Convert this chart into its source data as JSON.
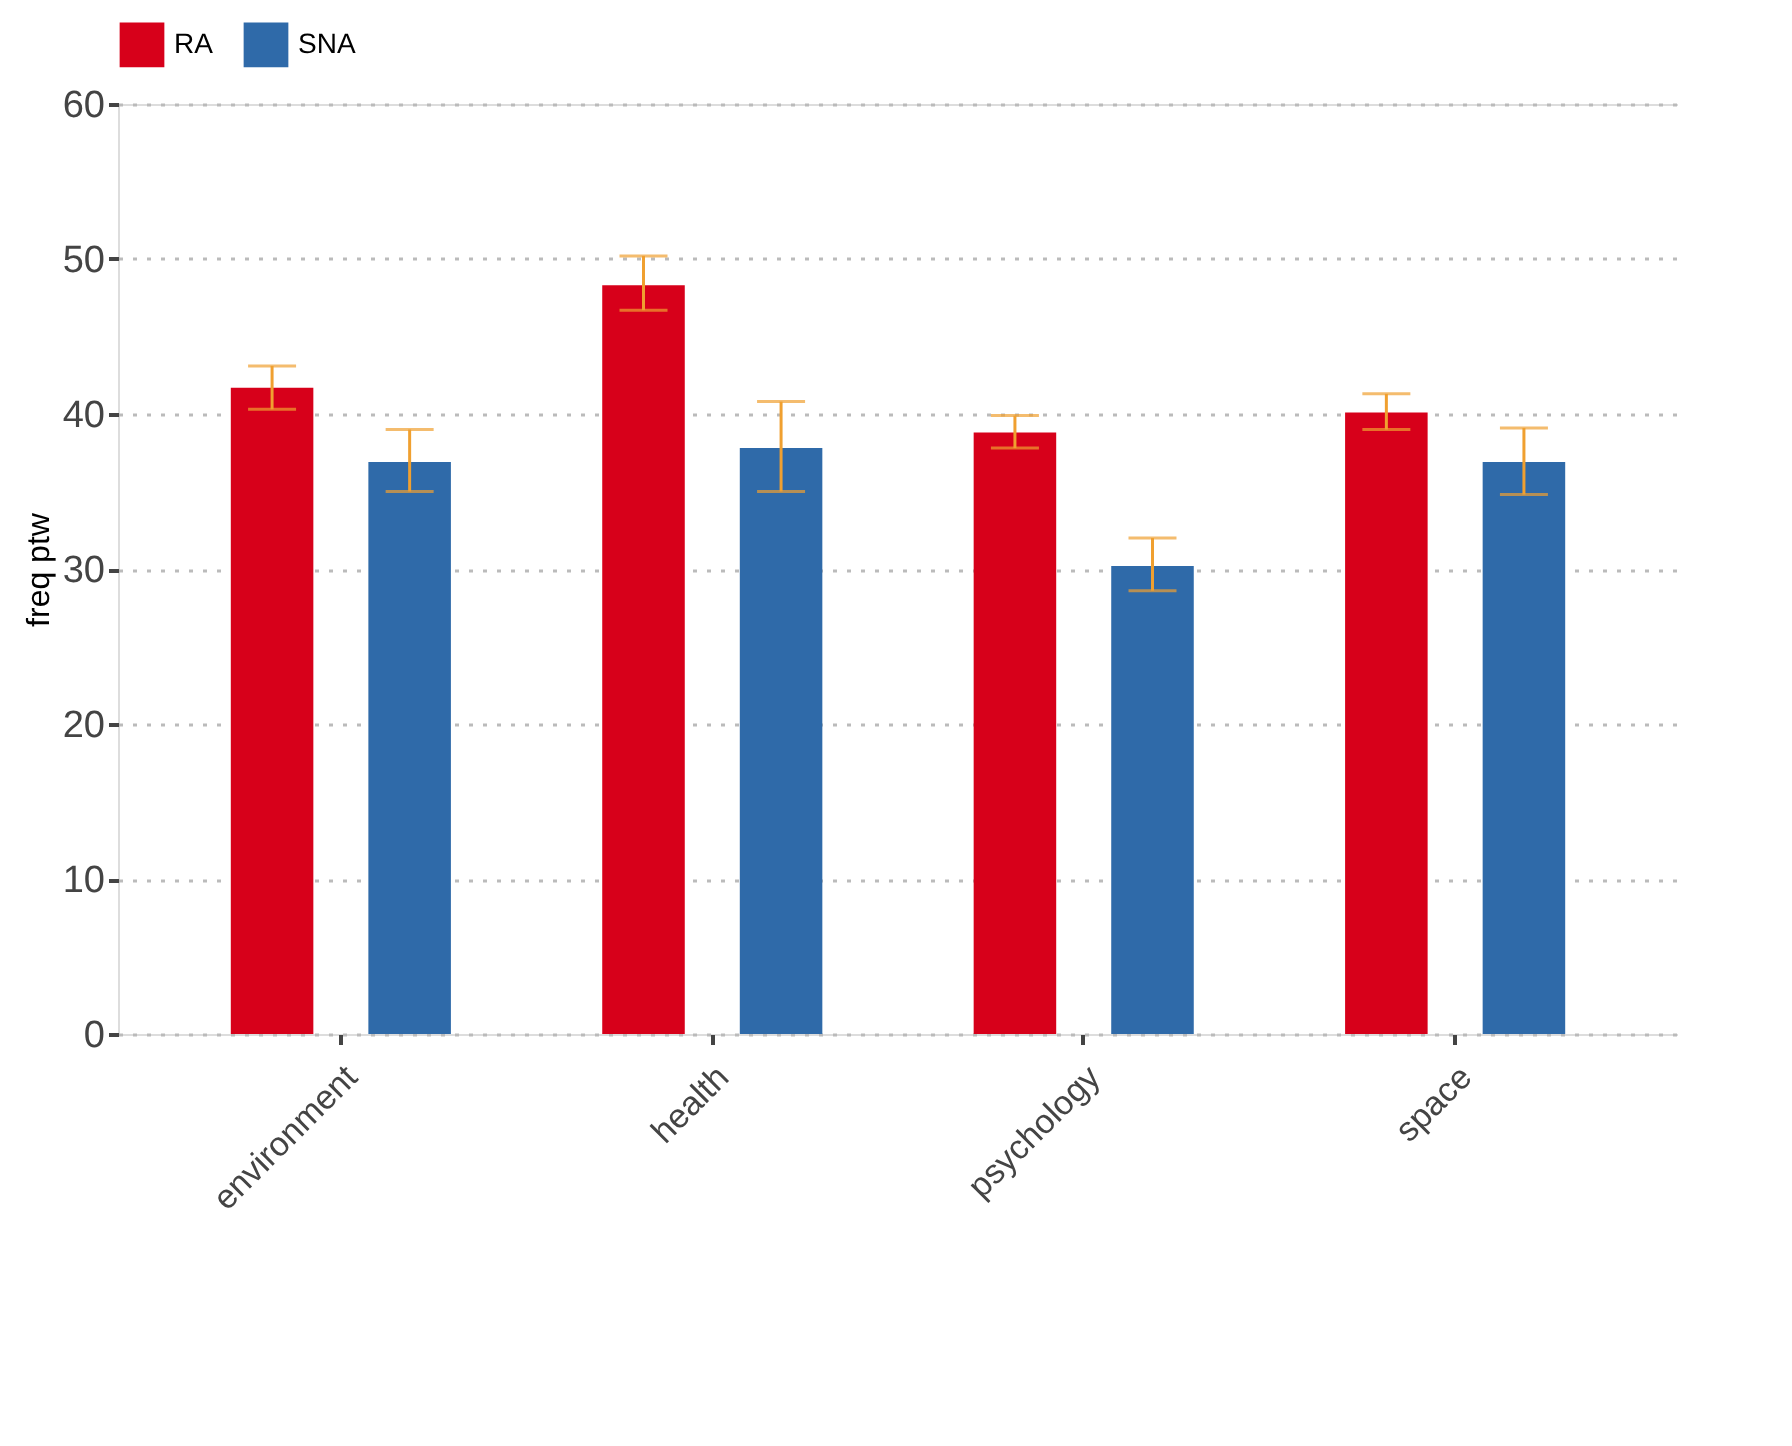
{
  "chart_data": {
    "type": "bar",
    "ylabel": "freq ptw",
    "categories": [
      "environment",
      "health",
      "psychology",
      "space"
    ],
    "series": [
      {
        "name": "RA",
        "color": "#d7001a",
        "values": [
          41.7,
          48.3,
          38.8,
          40.1
        ],
        "errors": [
          [
            40.3,
            43.1
          ],
          [
            46.7,
            50.2
          ],
          [
            37.8,
            39.9
          ],
          [
            39.0,
            41.3
          ]
        ]
      },
      {
        "name": "SNA",
        "color": "#2f6aa9",
        "values": [
          36.9,
          37.8,
          30.2,
          36.9
        ],
        "errors": [
          [
            35.0,
            39.0
          ],
          [
            35.0,
            40.8
          ],
          [
            28.6,
            32.0
          ],
          [
            34.8,
            39.1
          ]
        ]
      }
    ],
    "ylim": [
      0,
      60
    ],
    "yticks": [
      0,
      10,
      20,
      30,
      40,
      50,
      60
    ],
    "grid": "y",
    "legend": "top"
  }
}
